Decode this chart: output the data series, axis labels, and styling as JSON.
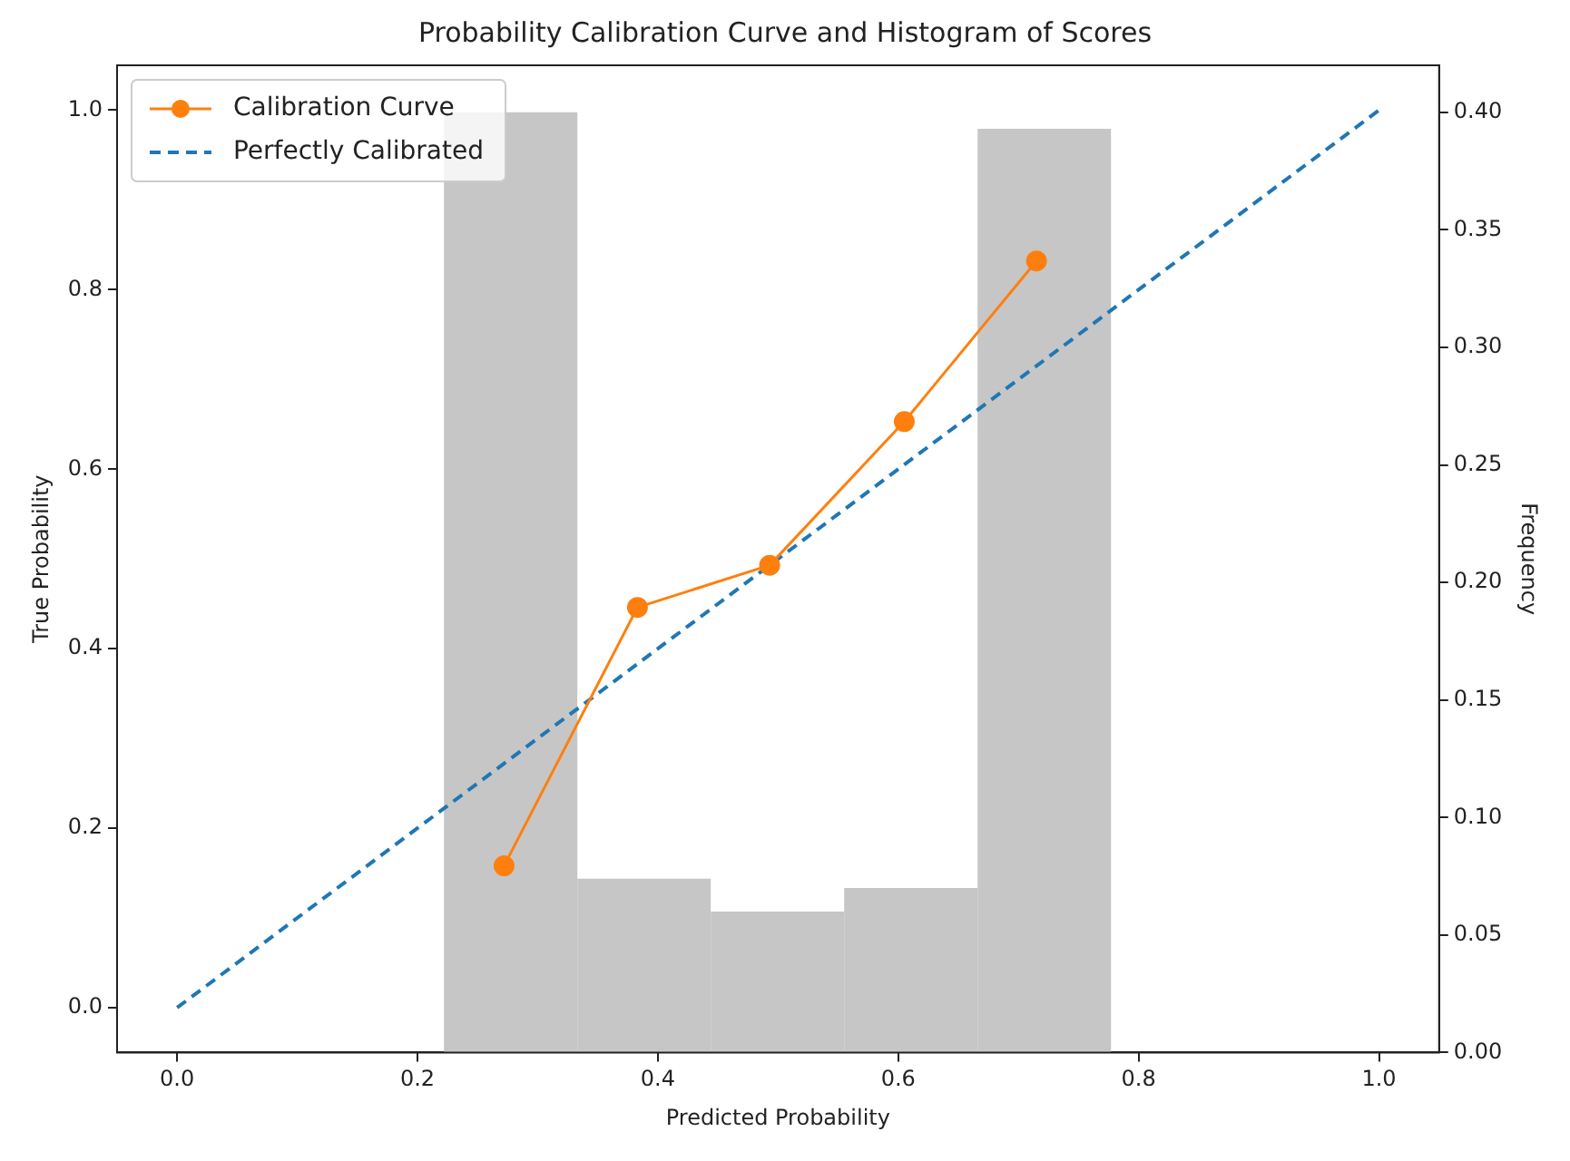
{
  "chart_data": {
    "type": "line",
    "title": "Probability Calibration Curve and Histogram of Scores",
    "xlabel": "Predicted Probability",
    "ylabel": "True Probability",
    "y2label": "Frequency",
    "series": [
      {
        "type": "histogram",
        "axis": "y2",
        "color": "#c6c6c6",
        "bins": [
          0.222,
          0.333,
          0.444,
          0.555,
          0.666,
          0.777
        ],
        "values": [
          0.4,
          0.074,
          0.06,
          0.07,
          0.393
        ]
      },
      {
        "name": "Calibration Curve",
        "color": "#ff7f0e",
        "marker": "circle",
        "x": [
          0.272,
          0.383,
          0.493,
          0.605,
          0.715
        ],
        "values": [
          0.158,
          0.446,
          0.493,
          0.653,
          0.832
        ]
      },
      {
        "type": "line",
        "name": "Perfectly Calibrated",
        "color": "#1f77b4",
        "line_style": "dashed",
        "x": [
          0,
          1
        ],
        "values": [
          0,
          1
        ]
      }
    ],
    "xlim": [
      -0.05,
      1.05
    ],
    "ylim": [
      -0.05,
      1.05
    ],
    "y2lim": [
      0,
      0.42
    ],
    "xticks": [
      {
        "value": 0,
        "label": "0.0"
      },
      {
        "value": 0.2,
        "label": "0.2"
      },
      {
        "value": 0.4,
        "label": "0.4"
      },
      {
        "value": 0.6,
        "label": "0.6"
      },
      {
        "value": 0.8,
        "label": "0.8"
      },
      {
        "value": 1,
        "label": "1.0"
      }
    ],
    "yticks": [
      {
        "value": 0,
        "label": "0.0"
      },
      {
        "value": 0.2,
        "label": "0.2"
      },
      {
        "value": 0.4,
        "label": "0.4"
      },
      {
        "value": 0.6,
        "label": "0.6"
      },
      {
        "value": 0.8,
        "label": "0.8"
      },
      {
        "value": 1,
        "label": "1.0"
      }
    ],
    "y2ticks": [
      {
        "value": 0,
        "label": "0.00"
      },
      {
        "value": 0.05,
        "label": "0.05"
      },
      {
        "value": 0.1,
        "label": "0.10"
      },
      {
        "value": 0.15,
        "label": "0.15"
      },
      {
        "value": 0.2,
        "label": "0.20"
      },
      {
        "value": 0.25,
        "label": "0.25"
      },
      {
        "value": 0.3,
        "label": "0.30"
      },
      {
        "value": 0.35,
        "label": "0.35"
      },
      {
        "value": 0.4,
        "label": "0.40"
      }
    ],
    "legend": "top left"
  }
}
